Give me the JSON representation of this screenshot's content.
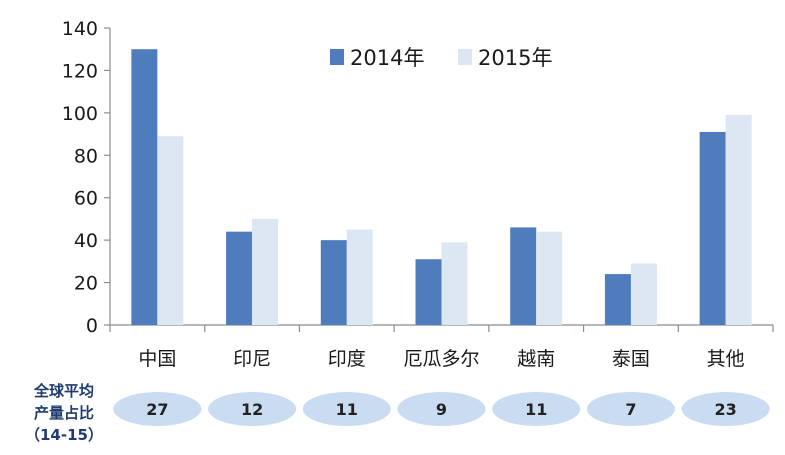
{
  "colors": {
    "series_2014": "#4e7cbd",
    "series_2015": "#dde7f4",
    "axis": "#8c8c8c",
    "pill_fill": "#c9dcf1",
    "share_label_color": "#1f3b6f"
  },
  "chart_data": {
    "type": "bar",
    "categories": [
      "中国",
      "印尼",
      "印度",
      "厄瓜多尔",
      "越南",
      "泰国",
      "其他"
    ],
    "series": [
      {
        "name": "2014年",
        "values": [
          130,
          44,
          40,
          31,
          46,
          24,
          91
        ]
      },
      {
        "name": "2015年",
        "values": [
          89,
          50,
          45,
          39,
          44,
          29,
          99
        ]
      }
    ],
    "ylim": [
      0,
      140
    ],
    "yticks": [
      0,
      20,
      40,
      60,
      80,
      100,
      120,
      140
    ],
    "grid": false,
    "legend_position": "top-right",
    "title": "",
    "xlabel": "",
    "ylabel": ""
  },
  "share_row": {
    "label_lines": [
      "全球平均",
      "产量占比",
      "（14-15）"
    ],
    "values": [
      "27",
      "12",
      "11",
      "9",
      "11",
      "7",
      "23"
    ]
  }
}
